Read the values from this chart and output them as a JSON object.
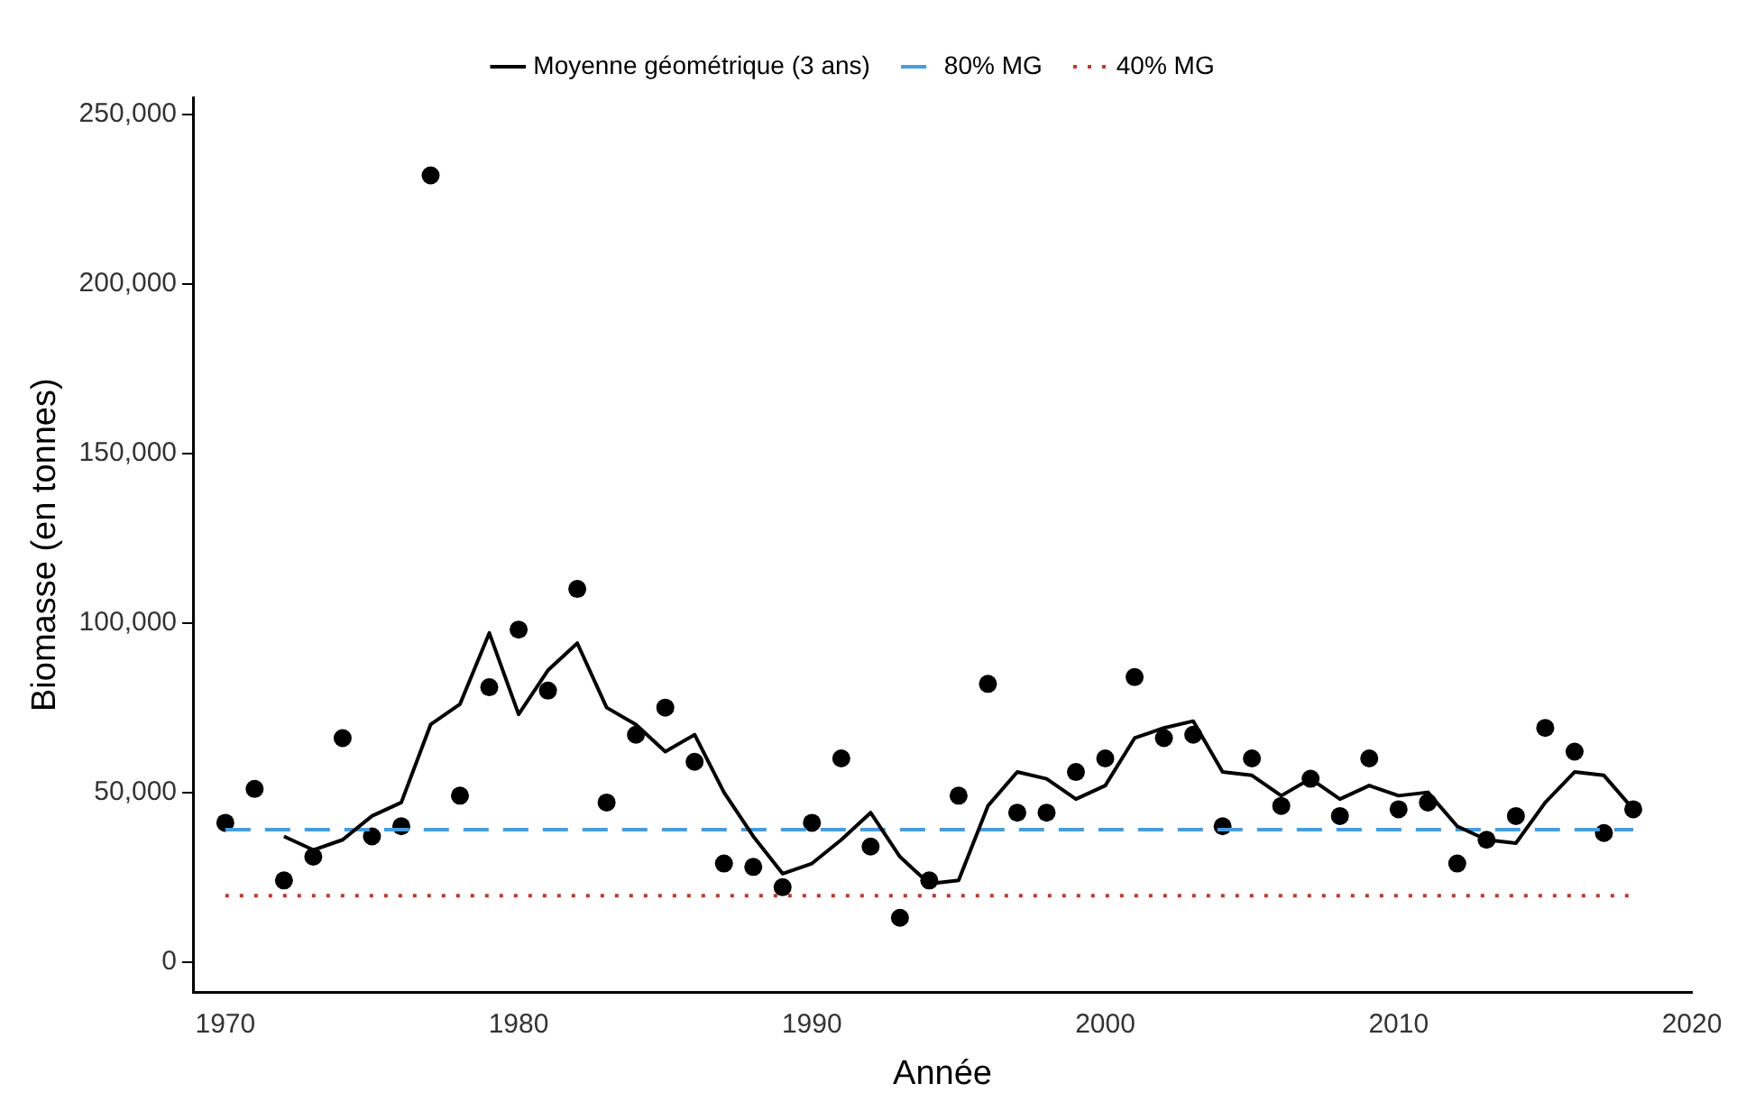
{
  "chart_data": {
    "type": "scatter",
    "xlabel": "Année",
    "ylabel": "Biomasse (en tonnes)",
    "xlim": [
      1968.9,
      2020
    ],
    "xticks": [
      1970,
      1980,
      1990,
      2000,
      2010,
      2020
    ],
    "ylim": [
      -9000,
      255000
    ],
    "yticks": [
      {
        "value": 0,
        "label": "0"
      },
      {
        "value": 50000,
        "label": "50,000"
      },
      {
        "value": 100000,
        "label": "100,000"
      },
      {
        "value": 150000,
        "label": "150,000"
      },
      {
        "value": 200000,
        "label": "200,000"
      },
      {
        "value": 250000,
        "label": "250,000"
      }
    ],
    "grid": false,
    "legend": "top",
    "series": [
      {
        "type": "line",
        "name": "Moyenne géométrique (3 ans)",
        "color": "#000000",
        "marker": "none",
        "line_style": "solid",
        "x": [
          1972,
          1973,
          1974,
          1975,
          1976,
          1977,
          1978,
          1979,
          1980,
          1981,
          1982,
          1983,
          1984,
          1985,
          1986,
          1987,
          1988,
          1989,
          1990,
          1991,
          1992,
          1993,
          1994,
          1995,
          1996,
          1997,
          1998,
          1999,
          2000,
          2001,
          2002,
          2003,
          2004,
          2005,
          2006,
          2007,
          2008,
          2009,
          2010,
          2011,
          2012,
          2013,
          2014,
          2015,
          2016,
          2017,
          2018
        ],
        "values": [
          37000,
          33000,
          36000,
          43000,
          47000,
          70000,
          76000,
          97000,
          73000,
          86000,
          94000,
          75000,
          70000,
          62000,
          67000,
          50000,
          37000,
          26000,
          29000,
          36000,
          44000,
          31000,
          23000,
          24000,
          46000,
          56000,
          54000,
          48000,
          52000,
          66000,
          69000,
          71000,
          56000,
          55000,
          49000,
          54000,
          48000,
          52000,
          49000,
          50000,
          40000,
          36000,
          35000,
          47000,
          56000,
          55000,
          45000
        ]
      },
      {
        "type": "line",
        "name": "80% MG",
        "color": "#4a9bd9",
        "marker": "none",
        "line_style": "dashed",
        "x": [
          1970,
          2018
        ],
        "values": [
          39000,
          39000
        ]
      },
      {
        "type": "line",
        "name": "40% MG",
        "color": "#c0392b",
        "marker": "none",
        "line_style": "dotted",
        "x": [
          1970,
          2018
        ],
        "values": [
          19500,
          19500
        ]
      },
      {
        "type": "scatter",
        "color": "#000000",
        "marker": "circle",
        "x": [
          1970,
          1971,
          1972,
          1973,
          1974,
          1975,
          1976,
          1977,
          1978,
          1979,
          1980,
          1981,
          1982,
          1983,
          1984,
          1985,
          1986,
          1987,
          1988,
          1989,
          1990,
          1991,
          1992,
          1993,
          1994,
          1995,
          1996,
          1997,
          1998,
          1999,
          2000,
          2001,
          2002,
          2003,
          2004,
          2005,
          2006,
          2007,
          2008,
          2009,
          2010,
          2011,
          2012,
          2013,
          2014,
          2015,
          2016,
          2017,
          2018
        ],
        "values": [
          41000,
          51000,
          24000,
          31000,
          66000,
          37000,
          40000,
          232000,
          49000,
          81000,
          98000,
          80000,
          110000,
          47000,
          67000,
          75000,
          59000,
          29000,
          28000,
          22000,
          41000,
          60000,
          34000,
          13000,
          24000,
          49000,
          82000,
          44000,
          44000,
          56000,
          60000,
          84000,
          66000,
          67000,
          40000,
          60000,
          46000,
          54000,
          43000,
          60000,
          45000,
          47000,
          29000,
          36000,
          43000,
          69000,
          62000,
          38000,
          45000
        ]
      }
    ]
  }
}
